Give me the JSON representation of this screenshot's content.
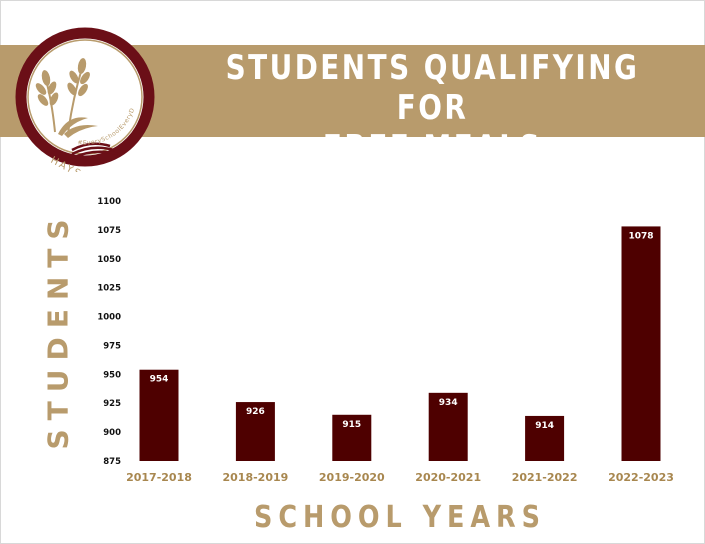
{
  "header": {
    "title_line1": "STUDENTS QUALIFYING FOR",
    "title_line2": "FREE MEALS"
  },
  "logo": {
    "icon": "wheat-book-emblem-icon",
    "text": "HAYS",
    "hashtag": "#EverySchoolEveryDay491"
  },
  "colors": {
    "bar": "#4e0000",
    "accent": "#b89b6c",
    "logo_ring": "#6b0f17",
    "tick_text": "#111111",
    "category_text": "#a8874f"
  },
  "chart_data": {
    "type": "bar",
    "title": "STUDENTS QUALIFYING FOR FREE MEALS",
    "xlabel": "SCHOOL YEARS",
    "ylabel": "STUDENTS",
    "categories": [
      "2017-2018",
      "2018-2019",
      "2019-2020",
      "2020-2021",
      "2021-2022",
      "2022-2023"
    ],
    "values": [
      954,
      926,
      915,
      934,
      914,
      1078
    ],
    "ylim": [
      875,
      1100
    ],
    "yticks": [
      875,
      900,
      925,
      950,
      975,
      1000,
      1025,
      1050,
      1075,
      1100
    ],
    "grid": false,
    "legend": "none",
    "data_labels": true
  }
}
